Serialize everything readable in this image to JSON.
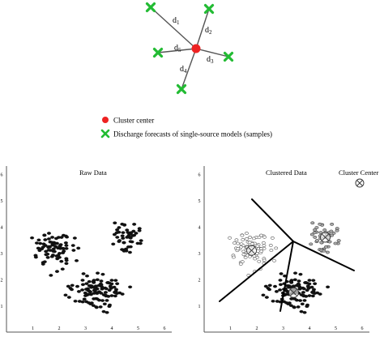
{
  "star_diagram": {
    "center_color": "#ee2222",
    "sample_color": "#22bb33",
    "distance_labels": [
      {
        "base": "d",
        "sub": "1"
      },
      {
        "base": "d",
        "sub": "2"
      },
      {
        "base": "d",
        "sub": "3"
      },
      {
        "base": "d",
        "sub": "4"
      },
      {
        "base": "d",
        "sub": "5"
      }
    ]
  },
  "legend": {
    "center_label": "Cluster center",
    "samples_label": "Discharge forecasts of single-source models (samples)"
  },
  "left_panel": {
    "title": "Raw Data",
    "x_ticks": [
      "1",
      "2",
      "3",
      "4",
      "5",
      "6"
    ],
    "y_ticks": [
      "1",
      "2",
      "3",
      "4",
      "5",
      "6"
    ]
  },
  "right_panel": {
    "title": "Clustered Data",
    "center_legend_label": "Cluster Center",
    "x_ticks": [
      "1",
      "2",
      "3",
      "4",
      "5",
      "6"
    ],
    "y_ticks": [
      "1",
      "2",
      "3",
      "4",
      "5",
      "6"
    ],
    "cluster_centers": [
      {
        "x": 1.8,
        "y": 3.1
      },
      {
        "x": 4.6,
        "y": 3.6
      },
      {
        "x": 3.4,
        "y": 1.5
      }
    ]
  }
}
